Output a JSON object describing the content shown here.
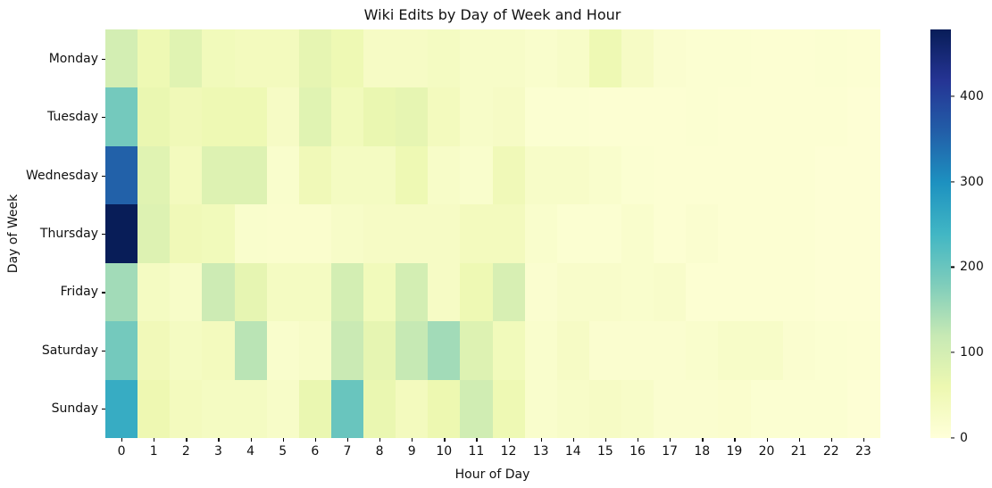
{
  "chart_data": {
    "type": "heatmap",
    "title": "Wiki Edits by Day of Week and Hour",
    "xlabel": "Hour of Day",
    "ylabel": "Day of Week",
    "x_labels": [
      "0",
      "1",
      "2",
      "3",
      "4",
      "5",
      "6",
      "7",
      "8",
      "9",
      "10",
      "11",
      "12",
      "13",
      "14",
      "15",
      "16",
      "17",
      "18",
      "19",
      "20",
      "21",
      "22",
      "23"
    ],
    "y_labels": [
      "Monday",
      "Tuesday",
      "Wednesday",
      "Thursday",
      "Friday",
      "Saturday",
      "Sunday"
    ],
    "values": [
      [
        100,
        55,
        80,
        45,
        40,
        40,
        70,
        55,
        30,
        30,
        35,
        25,
        25,
        20,
        25,
        55,
        30,
        15,
        12,
        12,
        10,
        10,
        12,
        10
      ],
      [
        190,
        65,
        50,
        55,
        55,
        30,
        80,
        45,
        65,
        70,
        40,
        25,
        30,
        12,
        12,
        10,
        10,
        10,
        12,
        10,
        10,
        10,
        10,
        8
      ],
      [
        355,
        80,
        40,
        85,
        85,
        20,
        50,
        35,
        35,
        55,
        25,
        20,
        50,
        25,
        25,
        20,
        12,
        10,
        10,
        10,
        10,
        10,
        8,
        8
      ],
      [
        478,
        85,
        50,
        45,
        20,
        18,
        18,
        25,
        30,
        30,
        30,
        40,
        40,
        20,
        12,
        12,
        20,
        10,
        15,
        10,
        10,
        10,
        8,
        8
      ],
      [
        150,
        35,
        25,
        110,
        70,
        35,
        35,
        100,
        45,
        100,
        30,
        55,
        95,
        15,
        22,
        22,
        20,
        22,
        10,
        10,
        10,
        10,
        8,
        8
      ],
      [
        190,
        48,
        35,
        40,
        130,
        20,
        25,
        115,
        70,
        120,
        150,
        85,
        45,
        20,
        30,
        15,
        15,
        15,
        20,
        25,
        25,
        15,
        12,
        10
      ],
      [
        255,
        58,
        40,
        35,
        35,
        25,
        65,
        200,
        65,
        40,
        60,
        105,
        55,
        20,
        25,
        30,
        25,
        15,
        15,
        18,
        12,
        12,
        12,
        8
      ]
    ],
    "vmin": 0,
    "vmax": 478,
    "grid": false,
    "legend_position": "right-colorbar",
    "colormap": "YlGnBu",
    "colormap_stops": [
      "#ffffd9",
      "#edf8b1",
      "#c7e9b4",
      "#7fcdbb",
      "#41b6c4",
      "#1d91c0",
      "#225ea8",
      "#253494",
      "#081d58"
    ],
    "colorbar_ticks": [
      0,
      100,
      200,
      300,
      400
    ]
  }
}
